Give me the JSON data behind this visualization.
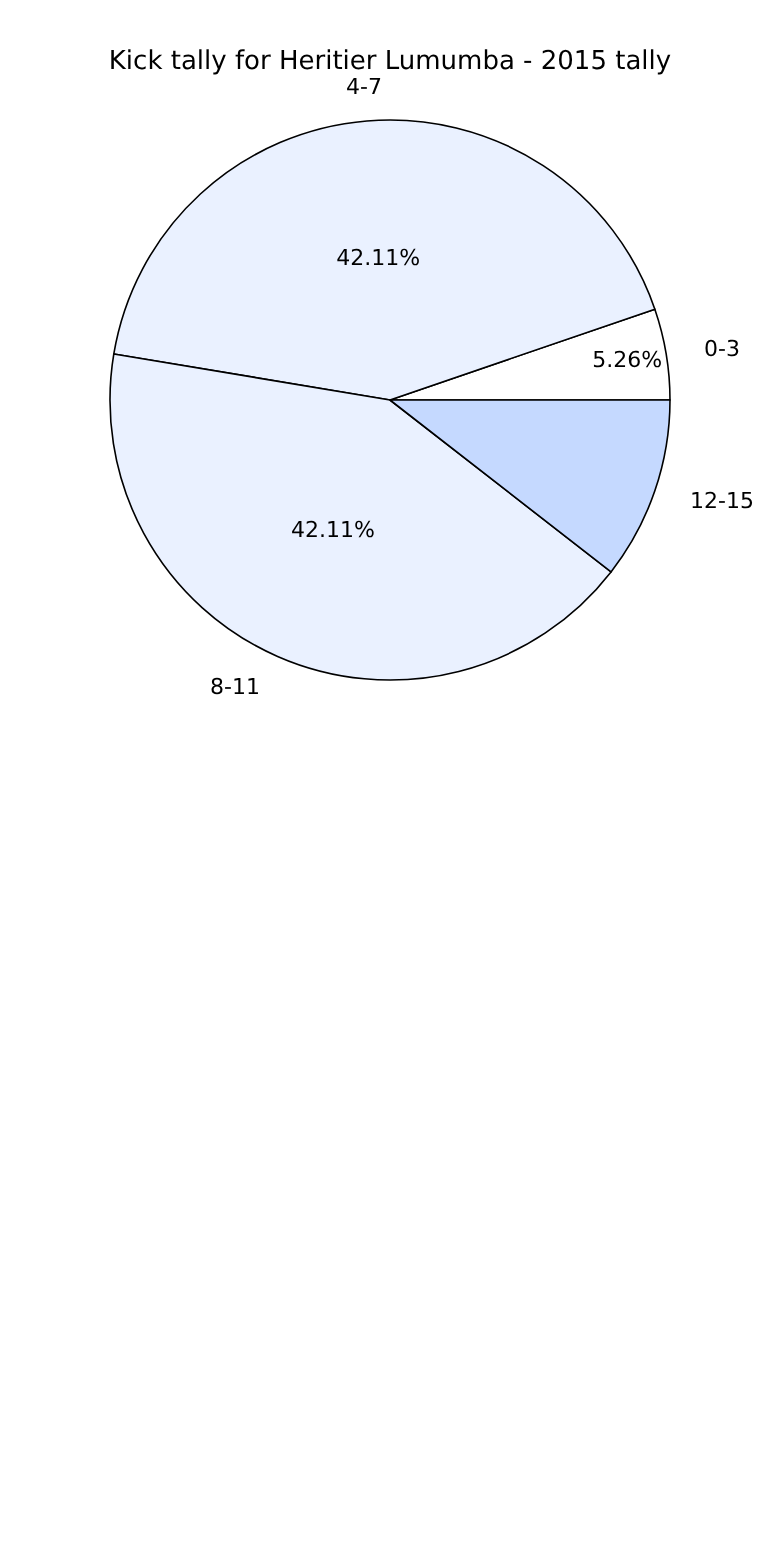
{
  "chart_data": {
    "type": "pie",
    "title": "Kick tally for Heritier Lumumba - 2015 tally",
    "categories": [
      "0-3",
      "4-7",
      "8-11",
      "12-15"
    ],
    "values": [
      5.26,
      42.11,
      42.11,
      10.52
    ],
    "colors": [
      "#ffffff",
      "#eaf1ff",
      "#eaf1ff",
      "#c5d9ff"
    ],
    "value_labels": [
      "5.26%",
      "42.11%",
      "42.11%",
      null
    ],
    "legend": false
  }
}
